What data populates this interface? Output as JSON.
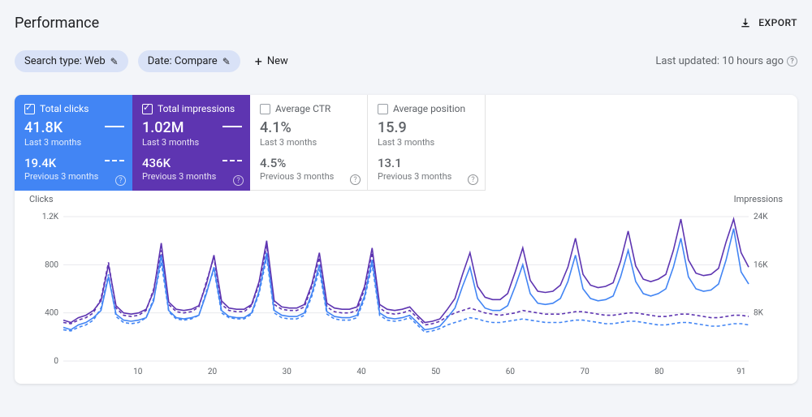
{
  "header": {
    "title": "Performance",
    "export_label": "EXPORT"
  },
  "filters": {
    "search_type": "Search type: Web",
    "date": "Date: Compare",
    "new_label": "New",
    "last_updated": "Last updated: 10 hours ago"
  },
  "metrics": [
    {
      "key": "clicks",
      "label": "Total clicks",
      "active": true,
      "color": "#4285f4",
      "current_value": "41.8K",
      "current_period": "Last 3 months",
      "prev_value": "19.4K",
      "prev_period": "Previous 3 months"
    },
    {
      "key": "impressions",
      "label": "Total impressions",
      "active": true,
      "color": "#5e35b1",
      "current_value": "1.02M",
      "current_period": "Last 3 months",
      "prev_value": "436K",
      "prev_period": "Previous 3 months"
    },
    {
      "key": "ctr",
      "label": "Average CTR",
      "active": false,
      "current_value": "4.1%",
      "current_period": "Last 3 months",
      "prev_value": "4.5%",
      "prev_period": "Previous 3 months"
    },
    {
      "key": "position",
      "label": "Average position",
      "active": false,
      "current_value": "15.9",
      "current_period": "Last 3 months",
      "prev_value": "13.1",
      "prev_period": "Previous 3 months"
    }
  ],
  "chart": {
    "left_axis_label": "Clicks",
    "right_axis_label": "Impressions",
    "left_ticks": [
      0,
      400,
      800,
      "1.2K"
    ],
    "right_ticks": [
      "",
      "8K",
      "16K",
      "24K"
    ],
    "left_max": 1200,
    "x_ticks": [
      10,
      20,
      30,
      40,
      50,
      60,
      70,
      80,
      91
    ],
    "x_max": 92,
    "colors": {
      "clicks_current": "#4285f4",
      "clicks_prev": "#4285f4",
      "impr_current": "#5e35b1",
      "impr_prev": "#5e35b1",
      "grid": "#e8eaed",
      "background": "#ffffff"
    },
    "series": {
      "clicks_current": [
        280,
        260,
        300,
        320,
        360,
        420,
        700,
        390,
        340,
        330,
        340,
        360,
        500,
        880,
        420,
        360,
        350,
        360,
        380,
        560,
        780,
        420,
        370,
        360,
        360,
        400,
        580,
        900,
        420,
        380,
        370,
        370,
        400,
        560,
        800,
        410,
        370,
        360,
        360,
        380,
        540,
        840,
        400,
        360,
        350,
        360,
        380,
        320,
        260,
        270,
        290,
        360,
        440,
        620,
        780,
        520,
        440,
        420,
        420,
        460,
        620,
        800,
        560,
        480,
        470,
        480,
        520,
        660,
        880,
        600,
        520,
        500,
        510,
        540,
        700,
        920,
        660,
        560,
        540,
        560,
        600,
        780,
        1020,
        700,
        600,
        580,
        590,
        640,
        840,
        1100,
        740,
        640
      ],
      "clicks_prev": [
        260,
        250,
        280,
        300,
        340,
        440,
        720,
        370,
        320,
        310,
        320,
        360,
        520,
        820,
        410,
        350,
        340,
        350,
        380,
        580,
        760,
        400,
        360,
        350,
        350,
        390,
        560,
        860,
        400,
        360,
        350,
        350,
        380,
        540,
        760,
        390,
        350,
        340,
        340,
        360,
        520,
        800,
        380,
        340,
        330,
        340,
        360,
        300,
        240,
        250,
        270,
        300,
        320,
        340,
        360,
        350,
        330,
        320,
        320,
        330,
        340,
        350,
        340,
        330,
        320,
        320,
        320,
        330,
        340,
        340,
        330,
        320,
        310,
        310,
        320,
        330,
        330,
        320,
        310,
        300,
        300,
        310,
        320,
        320,
        310,
        300,
        290,
        290,
        300,
        310,
        310,
        300
      ],
      "impr_current": [
        340,
        320,
        360,
        380,
        420,
        500,
        800,
        460,
        400,
        390,
        400,
        430,
        580,
        980,
        490,
        430,
        420,
        430,
        460,
        640,
        880,
        500,
        440,
        430,
        430,
        470,
        660,
        1000,
        500,
        450,
        440,
        440,
        470,
        640,
        900,
        480,
        440,
        430,
        430,
        450,
        620,
        940,
        470,
        430,
        420,
        430,
        450,
        380,
        320,
        330,
        350,
        430,
        520,
        720,
        900,
        620,
        530,
        510,
        510,
        560,
        740,
        940,
        670,
        580,
        570,
        580,
        630,
        780,
        1020,
        720,
        630,
        610,
        620,
        650,
        830,
        1080,
        790,
        680,
        660,
        680,
        720,
        920,
        1180,
        840,
        730,
        710,
        720,
        770,
        990,
        1180,
        900,
        780
      ],
      "impr_prev": [
        320,
        310,
        340,
        360,
        400,
        520,
        820,
        440,
        380,
        370,
        380,
        420,
        600,
        920,
        470,
        410,
        400,
        410,
        450,
        660,
        860,
        470,
        420,
        410,
        410,
        460,
        640,
        960,
        470,
        430,
        420,
        420,
        450,
        620,
        860,
        450,
        410,
        400,
        400,
        420,
        600,
        900,
        440,
        400,
        390,
        400,
        420,
        360,
        300,
        310,
        330,
        370,
        400,
        420,
        440,
        420,
        400,
        390,
        380,
        390,
        400,
        420,
        410,
        400,
        390,
        390,
        390,
        400,
        410,
        410,
        400,
        390,
        380,
        380,
        390,
        400,
        400,
        390,
        380,
        370,
        370,
        380,
        390,
        390,
        380,
        370,
        360,
        360,
        370,
        380,
        380,
        370
      ]
    }
  }
}
